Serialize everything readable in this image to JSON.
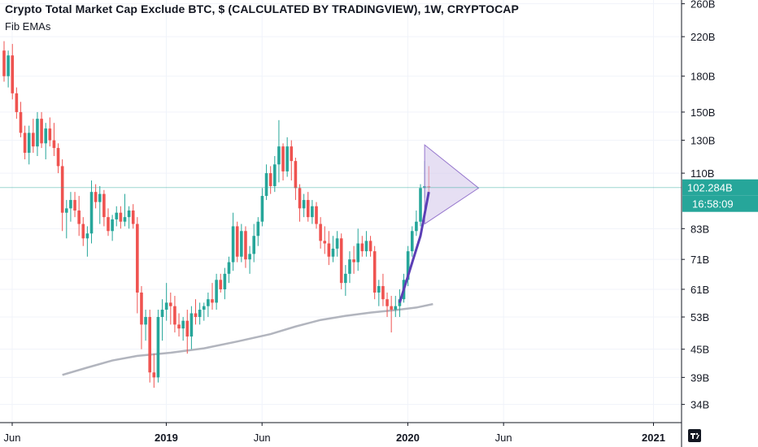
{
  "header": {
    "title": "Crypto Total Market Cap Exclude BTC, $ (CALCULATED BY TRADINGVIEW), 1W, CRYPTOCAP",
    "indicator": "Fib EMAs"
  },
  "colors": {
    "up": "#26a69a",
    "down": "#ef5350",
    "ema": "#b2b5be",
    "trendline": "#5b3fb5",
    "triangle_fill": "#d1c4e9",
    "triangle_stroke": "#9575cd",
    "price_tag": "#26a69a",
    "price_line": "#26a69a"
  },
  "price_tag": {
    "price": "102.284B",
    "countdown": "16:58:09"
  },
  "chart_data": {
    "type": "candlestick",
    "title": "Crypto Total Market Cap Exclude BTC, $ (CALCULATED BY TRADINGVIEW), 1W, CRYPTOCAP",
    "y_scale": "log",
    "ylim": [
      31,
      265
    ],
    "y_ticks": [
      "260B",
      "220B",
      "180B",
      "150B",
      "130B",
      "110B",
      "83B",
      "71B",
      "61B",
      "53B",
      "45B",
      "39B",
      "34B"
    ],
    "x_ticks": [
      "Jun",
      "2019",
      "Jun",
      "2020",
      "Jun",
      "2021"
    ],
    "last_price": 102.284,
    "price_unit": "B",
    "candles": [
      {
        "o": 205,
        "h": 215,
        "l": 175,
        "c": 180
      },
      {
        "o": 180,
        "h": 205,
        "l": 170,
        "c": 200
      },
      {
        "o": 200,
        "h": 212,
        "l": 160,
        "c": 165
      },
      {
        "o": 165,
        "h": 170,
        "l": 145,
        "c": 150
      },
      {
        "o": 150,
        "h": 158,
        "l": 132,
        "c": 135
      },
      {
        "o": 135,
        "h": 140,
        "l": 118,
        "c": 122
      },
      {
        "o": 122,
        "h": 140,
        "l": 115,
        "c": 135
      },
      {
        "o": 135,
        "h": 145,
        "l": 122,
        "c": 126
      },
      {
        "o": 126,
        "h": 150,
        "l": 120,
        "c": 145
      },
      {
        "o": 145,
        "h": 150,
        "l": 125,
        "c": 128
      },
      {
        "o": 128,
        "h": 142,
        "l": 118,
        "c": 138
      },
      {
        "o": 138,
        "h": 146,
        "l": 126,
        "c": 130
      },
      {
        "o": 130,
        "h": 142,
        "l": 120,
        "c": 125
      },
      {
        "o": 125,
        "h": 128,
        "l": 110,
        "c": 114
      },
      {
        "o": 114,
        "h": 118,
        "l": 82,
        "c": 90
      },
      {
        "o": 90,
        "h": 96,
        "l": 79,
        "c": 92
      },
      {
        "o": 92,
        "h": 100,
        "l": 86,
        "c": 96
      },
      {
        "o": 96,
        "h": 100,
        "l": 88,
        "c": 91
      },
      {
        "o": 91,
        "h": 98,
        "l": 80,
        "c": 85
      },
      {
        "o": 85,
        "h": 88,
        "l": 76,
        "c": 79
      },
      {
        "o": 79,
        "h": 84,
        "l": 72,
        "c": 81
      },
      {
        "o": 81,
        "h": 106,
        "l": 77,
        "c": 100
      },
      {
        "o": 100,
        "h": 104,
        "l": 92,
        "c": 95
      },
      {
        "o": 95,
        "h": 103,
        "l": 85,
        "c": 99
      },
      {
        "o": 99,
        "h": 101,
        "l": 84,
        "c": 88
      },
      {
        "o": 88,
        "h": 92,
        "l": 80,
        "c": 82
      },
      {
        "o": 82,
        "h": 89,
        "l": 78,
        "c": 87
      },
      {
        "o": 87,
        "h": 93,
        "l": 84,
        "c": 90
      },
      {
        "o": 90,
        "h": 93,
        "l": 83,
        "c": 86
      },
      {
        "o": 86,
        "h": 99,
        "l": 84,
        "c": 88
      },
      {
        "o": 88,
        "h": 93,
        "l": 83,
        "c": 91
      },
      {
        "o": 91,
        "h": 94,
        "l": 83,
        "c": 85
      },
      {
        "o": 85,
        "h": 88,
        "l": 54,
        "c": 60
      },
      {
        "o": 60,
        "h": 62,
        "l": 45,
        "c": 51
      },
      {
        "o": 51,
        "h": 55,
        "l": 47,
        "c": 53
      },
      {
        "o": 53,
        "h": 55,
        "l": 38,
        "c": 40
      },
      {
        "o": 40,
        "h": 44,
        "l": 37,
        "c": 39
      },
      {
        "o": 39,
        "h": 55,
        "l": 38,
        "c": 53
      },
      {
        "o": 53,
        "h": 58,
        "l": 47,
        "c": 55
      },
      {
        "o": 55,
        "h": 63,
        "l": 52,
        "c": 57
      },
      {
        "o": 57,
        "h": 60,
        "l": 51,
        "c": 56
      },
      {
        "o": 56,
        "h": 59,
        "l": 49,
        "c": 51
      },
      {
        "o": 51,
        "h": 54,
        "l": 48,
        "c": 50
      },
      {
        "o": 50,
        "h": 53,
        "l": 47,
        "c": 52
      },
      {
        "o": 52,
        "h": 55,
        "l": 44,
        "c": 48
      },
      {
        "o": 48,
        "h": 56,
        "l": 45,
        "c": 54
      },
      {
        "o": 54,
        "h": 58,
        "l": 51,
        "c": 53
      },
      {
        "o": 53,
        "h": 57,
        "l": 51,
        "c": 55
      },
      {
        "o": 55,
        "h": 57,
        "l": 52,
        "c": 56
      },
      {
        "o": 56,
        "h": 60,
        "l": 53,
        "c": 58
      },
      {
        "o": 58,
        "h": 63,
        "l": 55,
        "c": 57
      },
      {
        "o": 57,
        "h": 66,
        "l": 55,
        "c": 64
      },
      {
        "o": 64,
        "h": 66,
        "l": 60,
        "c": 61
      },
      {
        "o": 61,
        "h": 68,
        "l": 58,
        "c": 66
      },
      {
        "o": 66,
        "h": 72,
        "l": 63,
        "c": 70
      },
      {
        "o": 70,
        "h": 90,
        "l": 67,
        "c": 84
      },
      {
        "o": 84,
        "h": 86,
        "l": 70,
        "c": 72
      },
      {
        "o": 72,
        "h": 85,
        "l": 70,
        "c": 82
      },
      {
        "o": 82,
        "h": 84,
        "l": 68,
        "c": 71
      },
      {
        "o": 71,
        "h": 76,
        "l": 66,
        "c": 73
      },
      {
        "o": 73,
        "h": 85,
        "l": 70,
        "c": 80
      },
      {
        "o": 80,
        "h": 88,
        "l": 76,
        "c": 86
      },
      {
        "o": 86,
        "h": 102,
        "l": 84,
        "c": 98
      },
      {
        "o": 98,
        "h": 115,
        "l": 96,
        "c": 110
      },
      {
        "o": 110,
        "h": 114,
        "l": 99,
        "c": 103
      },
      {
        "o": 103,
        "h": 120,
        "l": 100,
        "c": 115
      },
      {
        "o": 115,
        "h": 144,
        "l": 105,
        "c": 126
      },
      {
        "o": 126,
        "h": 128,
        "l": 106,
        "c": 111
      },
      {
        "o": 111,
        "h": 132,
        "l": 108,
        "c": 126
      },
      {
        "o": 126,
        "h": 130,
        "l": 106,
        "c": 117
      },
      {
        "o": 117,
        "h": 119,
        "l": 96,
        "c": 102
      },
      {
        "o": 102,
        "h": 104,
        "l": 86,
        "c": 92
      },
      {
        "o": 92,
        "h": 99,
        "l": 88,
        "c": 96
      },
      {
        "o": 96,
        "h": 100,
        "l": 86,
        "c": 88
      },
      {
        "o": 88,
        "h": 96,
        "l": 85,
        "c": 93
      },
      {
        "o": 93,
        "h": 95,
        "l": 83,
        "c": 85
      },
      {
        "o": 85,
        "h": 88,
        "l": 75,
        "c": 78
      },
      {
        "o": 78,
        "h": 84,
        "l": 73,
        "c": 77
      },
      {
        "o": 77,
        "h": 82,
        "l": 69,
        "c": 72
      },
      {
        "o": 72,
        "h": 80,
        "l": 70,
        "c": 75
      },
      {
        "o": 75,
        "h": 82,
        "l": 72,
        "c": 79
      },
      {
        "o": 79,
        "h": 81,
        "l": 61,
        "c": 63
      },
      {
        "o": 63,
        "h": 69,
        "l": 59,
        "c": 66
      },
      {
        "o": 66,
        "h": 74,
        "l": 63,
        "c": 71
      },
      {
        "o": 71,
        "h": 76,
        "l": 66,
        "c": 70
      },
      {
        "o": 70,
        "h": 83,
        "l": 67,
        "c": 77
      },
      {
        "o": 77,
        "h": 80,
        "l": 72,
        "c": 74
      },
      {
        "o": 74,
        "h": 82,
        "l": 72,
        "c": 78
      },
      {
        "o": 78,
        "h": 80,
        "l": 72,
        "c": 74
      },
      {
        "o": 74,
        "h": 76,
        "l": 58,
        "c": 60
      },
      {
        "o": 60,
        "h": 64,
        "l": 56,
        "c": 62
      },
      {
        "o": 62,
        "h": 66,
        "l": 56,
        "c": 58
      },
      {
        "o": 58,
        "h": 60,
        "l": 53,
        "c": 56
      },
      {
        "o": 56,
        "h": 59,
        "l": 49,
        "c": 55
      },
      {
        "o": 55,
        "h": 59,
        "l": 53,
        "c": 56
      },
      {
        "o": 56,
        "h": 61,
        "l": 53,
        "c": 58
      },
      {
        "o": 58,
        "h": 66,
        "l": 57,
        "c": 64
      },
      {
        "o": 64,
        "h": 76,
        "l": 62,
        "c": 74
      },
      {
        "o": 74,
        "h": 84,
        "l": 72,
        "c": 82
      },
      {
        "o": 82,
        "h": 91,
        "l": 80,
        "c": 86
      },
      {
        "o": 86,
        "h": 104,
        "l": 84,
        "c": 102
      },
      {
        "o": 102,
        "h": 117,
        "l": 97,
        "c": 103
      },
      {
        "o": 103,
        "h": 114,
        "l": 98,
        "c": 102.284
      }
    ],
    "ema_series": [
      {
        "i": 14,
        "v": 39.5
      },
      {
        "i": 20,
        "v": 41
      },
      {
        "i": 26,
        "v": 42.5
      },
      {
        "i": 32,
        "v": 43.5
      },
      {
        "i": 40,
        "v": 44.2
      },
      {
        "i": 48,
        "v": 45.2
      },
      {
        "i": 56,
        "v": 46.8
      },
      {
        "i": 64,
        "v": 48.6
      },
      {
        "i": 70,
        "v": 50.5
      },
      {
        "i": 76,
        "v": 52.2
      },
      {
        "i": 82,
        "v": 53.3
      },
      {
        "i": 88,
        "v": 54.2
      },
      {
        "i": 94,
        "v": 54.9
      },
      {
        "i": 99,
        "v": 55.6
      },
      {
        "i": 103,
        "v": 56.6
      }
    ],
    "trendline": [
      {
        "i": 95,
        "v": 57
      },
      {
        "i": 100,
        "v": 80
      },
      {
        "i": 102,
        "v": 100
      }
    ],
    "triangle": [
      {
        "i": 101,
        "v": 127
      },
      {
        "i": 101,
        "v": 85
      },
      {
        "i": 112,
        "v": 102
      }
    ]
  }
}
